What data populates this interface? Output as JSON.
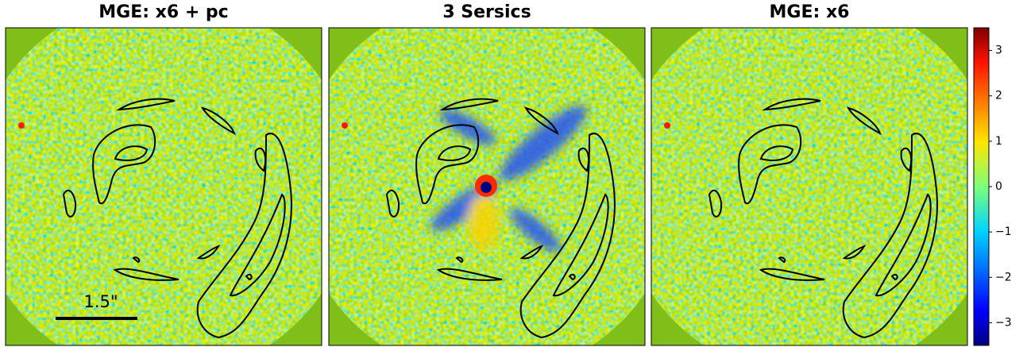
{
  "chart_data": [
    {
      "type": "image",
      "title": "MGE: x6 + pc",
      "scalebar_label": "1.5\""
    },
    {
      "type": "image",
      "title": "3 Sersics"
    },
    {
      "type": "image",
      "title": "MGE: x6"
    }
  ],
  "colorbar": {
    "colormap": "jet",
    "lim": [
      -3.5,
      3.5
    ],
    "ticks": [
      {
        "value": -3,
        "label": "−3"
      },
      {
        "value": -2,
        "label": "−2"
      },
      {
        "value": -1,
        "label": "−1"
      },
      0,
      1,
      2,
      3
    ]
  }
}
